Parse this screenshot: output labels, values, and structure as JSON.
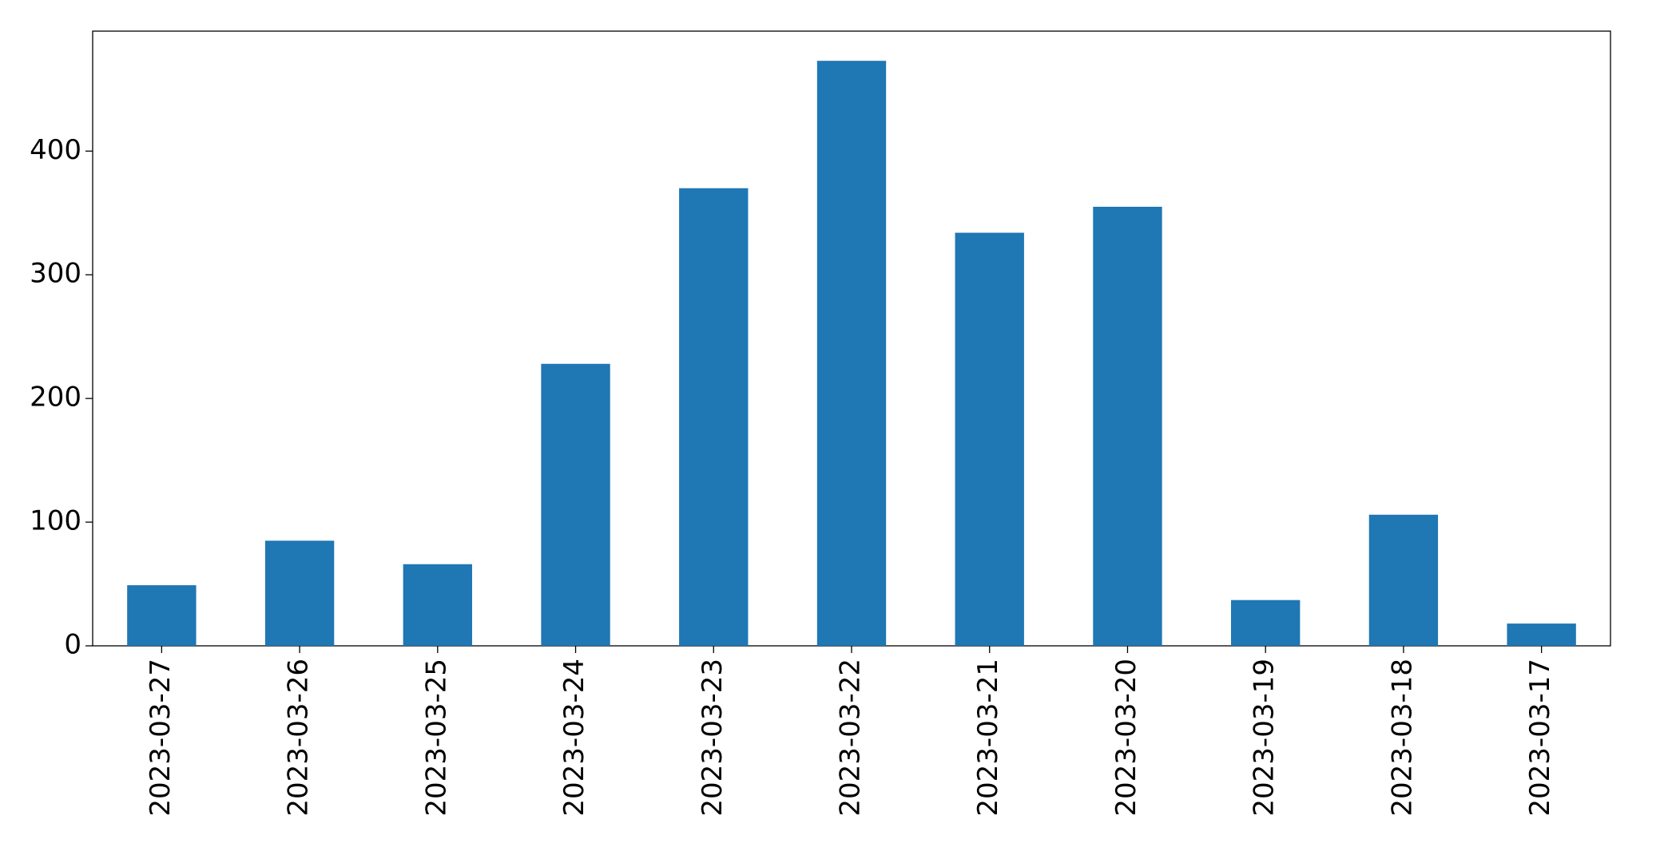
{
  "chart_data": {
    "type": "bar",
    "categories": [
      "2023-03-27",
      "2023-03-26",
      "2023-03-25",
      "2023-03-24",
      "2023-03-23",
      "2023-03-22",
      "2023-03-21",
      "2023-03-20",
      "2023-03-19",
      "2023-03-18",
      "2023-03-17"
    ],
    "values": [
      49,
      85,
      66,
      228,
      370,
      473,
      334,
      355,
      37,
      106,
      18
    ],
    "color": "#1f77b4",
    "ylim": [
      0,
      497
    ],
    "yticks": [
      0,
      100,
      200,
      300,
      400
    ],
    "grid": false
  }
}
